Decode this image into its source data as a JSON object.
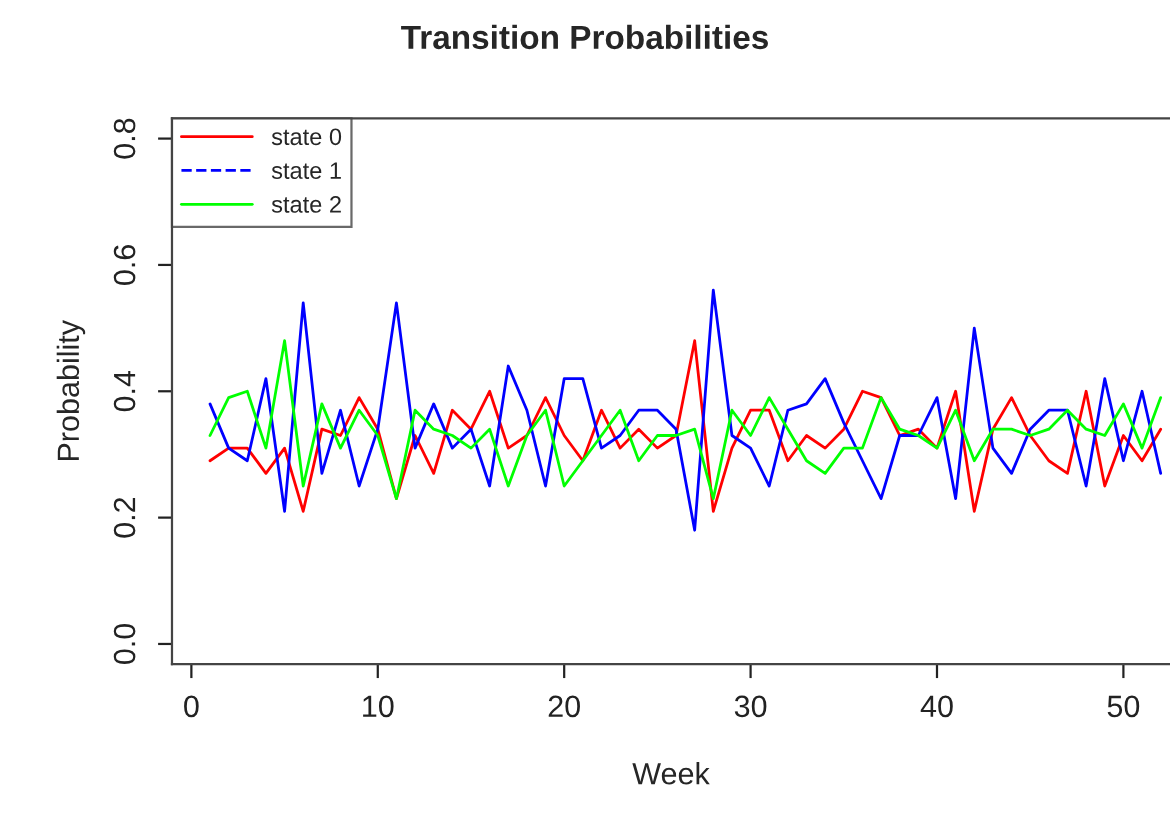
{
  "chart_data": {
    "type": "line",
    "title": "Transition Probabilities",
    "xlabel": "Week",
    "ylabel": "Probability",
    "x": [
      1,
      2,
      3,
      4,
      5,
      6,
      7,
      8,
      9,
      10,
      11,
      12,
      13,
      14,
      15,
      16,
      17,
      18,
      19,
      20,
      21,
      22,
      23,
      24,
      25,
      26,
      27,
      28,
      29,
      30,
      31,
      32,
      33,
      34,
      35,
      36,
      37,
      38,
      39,
      40,
      41,
      42,
      43,
      44,
      45,
      46,
      47,
      48,
      49,
      50,
      51,
      52
    ],
    "series": [
      {
        "name": "state 0",
        "color": "#ff0000",
        "line_style": "solid",
        "values": [
          0.29,
          0.31,
          0.31,
          0.27,
          0.31,
          0.21,
          0.34,
          0.33,
          0.39,
          0.34,
          0.23,
          0.33,
          0.27,
          0.37,
          0.34,
          0.4,
          0.31,
          0.33,
          0.39,
          0.33,
          0.29,
          0.37,
          0.31,
          0.34,
          0.31,
          0.33,
          0.48,
          0.21,
          0.31,
          0.37,
          0.37,
          0.29,
          0.33,
          0.31,
          0.34,
          0.4,
          0.39,
          0.33,
          0.34,
          0.31,
          0.4,
          0.21,
          0.34,
          0.39,
          0.33,
          0.29,
          0.27,
          0.4,
          0.25,
          0.33,
          0.29,
          0.34
        ]
      },
      {
        "name": "state 1",
        "color": "#0000ff",
        "line_style": "solid",
        "values": [
          0.38,
          0.31,
          0.29,
          0.42,
          0.21,
          0.54,
          0.27,
          0.37,
          0.25,
          0.34,
          0.54,
          0.31,
          0.38,
          0.31,
          0.34,
          0.25,
          0.44,
          0.37,
          0.25,
          0.42,
          0.42,
          0.31,
          0.33,
          0.37,
          0.37,
          0.34,
          0.18,
          0.56,
          0.33,
          0.31,
          0.25,
          0.37,
          0.38,
          0.42,
          0.35,
          0.29,
          0.23,
          0.33,
          0.33,
          0.39,
          0.23,
          0.5,
          0.31,
          0.27,
          0.34,
          0.37,
          0.37,
          0.25,
          0.42,
          0.29,
          0.4,
          0.27
        ]
      },
      {
        "name": "state 2",
        "color": "#00ff00",
        "line_style": "solid",
        "values": [
          0.33,
          0.39,
          0.4,
          0.31,
          0.48,
          0.25,
          0.38,
          0.31,
          0.37,
          0.33,
          0.23,
          0.37,
          0.34,
          0.33,
          0.31,
          0.34,
          0.25,
          0.33,
          0.37,
          0.25,
          0.29,
          0.33,
          0.37,
          0.29,
          0.33,
          0.33,
          0.34,
          0.23,
          0.37,
          0.33,
          0.39,
          0.34,
          0.29,
          0.27,
          0.31,
          0.31,
          0.39,
          0.34,
          0.33,
          0.31,
          0.37,
          0.29,
          0.34,
          0.34,
          0.33,
          0.34,
          0.37,
          0.34,
          0.33,
          0.38,
          0.31,
          0.39
        ]
      }
    ],
    "xlim": [
      -1.04,
      52.5
    ],
    "ylim": [
      -0.032,
      0.832
    ],
    "xticks": [
      0,
      10,
      20,
      30,
      40,
      50
    ],
    "yticks": [
      {
        "value": 0,
        "label": "0.0"
      },
      {
        "value": 0.2,
        "label": "0.2"
      },
      {
        "value": 0.4,
        "label": "0.4"
      },
      {
        "value": 0.6,
        "label": "0.6"
      },
      {
        "value": 0.8,
        "label": "0.8"
      }
    ],
    "grid": false,
    "legend": "top left",
    "marker": "none"
  }
}
